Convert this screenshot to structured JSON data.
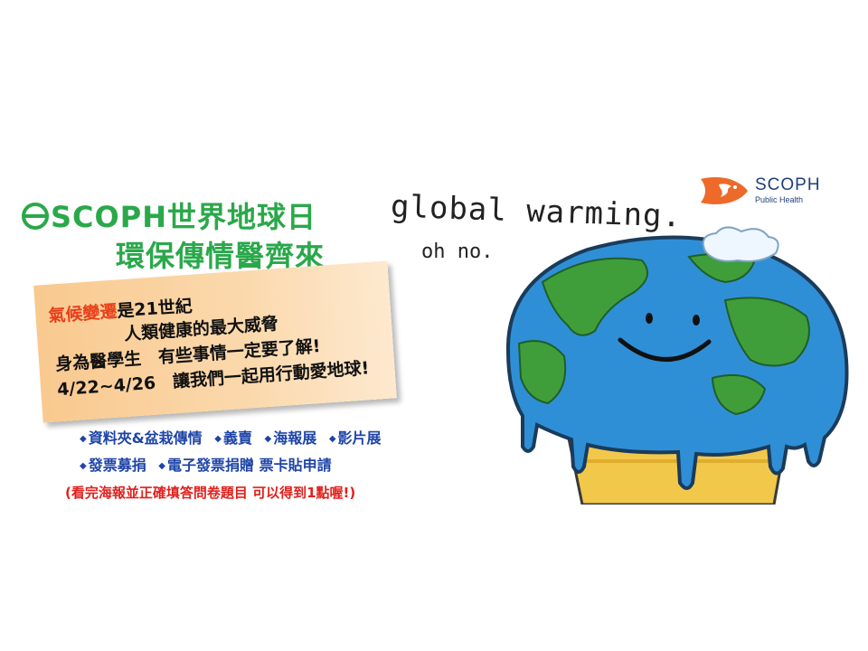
{
  "title": {
    "line1": "SCOPH世界地球日",
    "line2": "環保傳情醫齊來"
  },
  "handwriting": {
    "line1": "global warming.",
    "line2": "oh no."
  },
  "logo": {
    "name": "SCOPH",
    "subtitle": "Public Health"
  },
  "panel": {
    "line1_highlight": "氣候變遷",
    "line1_rest": "是21世紀",
    "line2": "人類健康的最大威脅",
    "line3": "身為醫學生　有些事情一定要了解!",
    "line4": "4/22~4/26　讓我們一起用行動愛地球!"
  },
  "activities": {
    "row1": [
      "資料夾&盆栽傳情",
      "義賣",
      "海報展",
      "影片展"
    ],
    "row2": [
      "發票募捐",
      "電子發票捐贈 票卡貼申請"
    ]
  },
  "note": "(看完海報並正確填答問卷題目 可以得到1點喔!)",
  "colors": {
    "title_green": "#2aa84a",
    "highlight_orange": "#e8401a",
    "activity_blue": "#1e44a8",
    "note_red": "#e0201c",
    "panel_orange": "#f9c98f",
    "ocean_blue": "#2f8fd6",
    "land_green": "#3f9e3a",
    "cone_yellow": "#f2c84b"
  }
}
